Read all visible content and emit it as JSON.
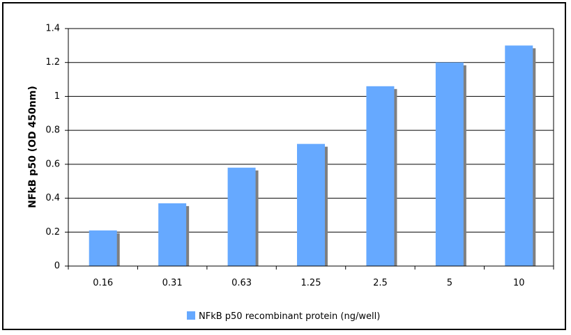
{
  "chart_data": {
    "type": "bar",
    "title": "",
    "xlabel": "",
    "ylabel": "NFkB p50 (OD 450nm)",
    "categories": [
      "0.16",
      "0.31",
      "0.63",
      "1.25",
      "2.5",
      "5",
      "10"
    ],
    "series": [
      {
        "name": "NFkB p50 recombinant protein (ng/well)",
        "values": [
          0.21,
          0.37,
          0.58,
          0.72,
          1.06,
          1.2,
          1.3
        ]
      }
    ],
    "ylim": [
      0,
      1.4
    ],
    "yticks": [
      0,
      0.2,
      0.4,
      0.6,
      0.8,
      1,
      1.2,
      1.4
    ],
    "ytick_labels": [
      "0",
      "0.2",
      "0.4",
      "0.6",
      "0.8",
      "1",
      "1.2",
      "1.4"
    ],
    "grid": true,
    "legend_position": "bottom",
    "colors": {
      "bar": "#66A9FF",
      "shadow": "#7F7F7F",
      "grid": "#000000"
    }
  }
}
